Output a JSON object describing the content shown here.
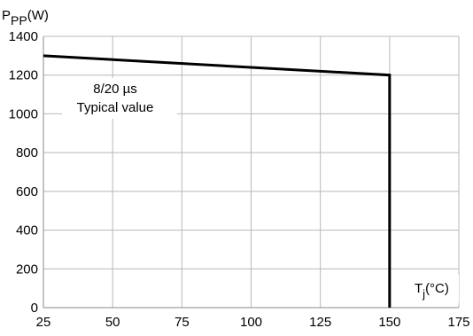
{
  "chart_data": {
    "type": "line",
    "ylabel_main": "P",
    "ylabel_sub": "PP",
    "ylabel_unit": "(W)",
    "xlabel_main": "T",
    "xlabel_sub": "j",
    "xlabel_unit": "(°C)",
    "xlim": [
      25,
      175
    ],
    "ylim": [
      0,
      1400
    ],
    "x_ticks": [
      25,
      50,
      75,
      100,
      125,
      150,
      175
    ],
    "y_ticks": [
      0,
      200,
      400,
      600,
      800,
      1000,
      1200,
      1400
    ],
    "grid": true,
    "series": [
      {
        "x": [
          25,
          150,
          150
        ],
        "y": [
          1300,
          1200,
          0
        ]
      }
    ],
    "annotations": [
      "8/20 µs",
      "Typical value"
    ]
  }
}
